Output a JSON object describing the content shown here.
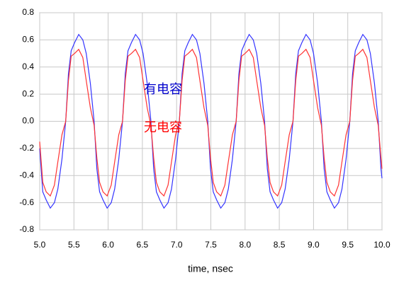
{
  "chart_data": {
    "type": "line",
    "xlabel": "time, nsec",
    "xlim": [
      5,
      10
    ],
    "xticks": [
      {
        "value": 5,
        "label": "5.0"
      },
      5.5,
      {
        "value": 6,
        "label": "6.0"
      },
      6.5,
      {
        "value": 7,
        "label": "7.0"
      },
      7.5,
      {
        "value": 8,
        "label": "8.0"
      },
      8.5,
      {
        "value": 9,
        "label": "9.0"
      },
      9.5,
      {
        "value": 10,
        "label": "10.0"
      }
    ],
    "ylim": [
      -0.8,
      0.8
    ],
    "yticks": [
      0.8,
      0.6,
      0.4,
      0.2,
      {
        "value": 0,
        "label": "0.0"
      },
      -0.2,
      -0.4,
      -0.6,
      -0.8
    ],
    "grid": true,
    "annotations": [
      {
        "text": "有电容",
        "color": "#0000cc"
      },
      {
        "text": "无电容",
        "color": "#ff0000"
      }
    ],
    "x": [
      5.0,
      5.045,
      5.095,
      5.155,
      5.215,
      5.265,
      5.325,
      5.38,
      5.42,
      5.46,
      5.51,
      5.57,
      5.63,
      5.68,
      5.74,
      5.795,
      5.835,
      5.875,
      5.925,
      5.985,
      6.045,
      6.095,
      6.155,
      6.21,
      6.25,
      6.29,
      6.34,
      6.4,
      6.46,
      6.51,
      6.57,
      6.625,
      6.665,
      6.705,
      6.755,
      6.815,
      6.875,
      6.925,
      6.985,
      7.04,
      7.08,
      7.12,
      7.17,
      7.23,
      7.29,
      7.34,
      7.4,
      7.455,
      7.495,
      7.535,
      7.585,
      7.645,
      7.705,
      7.755,
      7.815,
      7.87,
      7.91,
      7.95,
      8.0,
      8.06,
      8.12,
      8.17,
      8.23,
      8.285,
      8.325,
      8.365,
      8.415,
      8.475,
      8.535,
      8.585,
      8.645,
      8.7,
      8.74,
      8.78,
      8.83,
      8.89,
      8.95,
      9.0,
      9.06,
      9.115,
      9.155,
      9.195,
      9.245,
      9.305,
      9.365,
      9.415,
      9.475,
      9.53,
      9.57,
      9.61,
      9.66,
      9.72,
      9.78,
      9.83,
      9.89,
      9.945,
      9.985,
      10.0
    ],
    "series": [
      {
        "name": "有电容",
        "color": "#3333ff",
        "values": [
          -0.2,
          -0.52,
          -0.58,
          -0.64,
          -0.6,
          -0.5,
          -0.28,
          0,
          0.35,
          0.52,
          0.58,
          0.64,
          0.6,
          0.5,
          0.28,
          0,
          -0.35,
          -0.52,
          -0.58,
          -0.64,
          -0.6,
          -0.5,
          -0.28,
          0,
          0.35,
          0.52,
          0.58,
          0.64,
          0.6,
          0.5,
          0.28,
          0,
          -0.35,
          -0.52,
          -0.58,
          -0.64,
          -0.6,
          -0.5,
          -0.28,
          0,
          0.35,
          0.52,
          0.58,
          0.64,
          0.6,
          0.5,
          0.28,
          0,
          -0.35,
          -0.52,
          -0.58,
          -0.64,
          -0.6,
          -0.5,
          -0.28,
          0,
          0.35,
          0.52,
          0.58,
          0.64,
          0.6,
          0.5,
          0.28,
          0,
          -0.35,
          -0.52,
          -0.58,
          -0.64,
          -0.6,
          -0.5,
          -0.28,
          0,
          0.35,
          0.52,
          0.58,
          0.64,
          0.6,
          0.5,
          0.28,
          0,
          -0.35,
          -0.52,
          -0.58,
          -0.64,
          -0.6,
          -0.5,
          -0.28,
          0,
          0.35,
          0.52,
          0.58,
          0.64,
          0.6,
          0.5,
          0.28,
          0,
          -0.35,
          -0.42
        ]
      },
      {
        "name": "无电容",
        "color": "#ff3333",
        "values": [
          -0.15,
          -0.45,
          -0.52,
          -0.55,
          -0.47,
          -0.3,
          -0.1,
          0,
          0.3,
          0.48,
          0.5,
          0.53,
          0.47,
          0.3,
          0.1,
          -0.03,
          -0.27,
          -0.45,
          -0.52,
          -0.55,
          -0.47,
          -0.3,
          -0.1,
          0,
          0.3,
          0.48,
          0.5,
          0.53,
          0.47,
          0.3,
          0.1,
          -0.03,
          -0.27,
          -0.45,
          -0.52,
          -0.55,
          -0.47,
          -0.3,
          -0.1,
          0,
          0.3,
          0.48,
          0.5,
          0.53,
          0.47,
          0.3,
          0.1,
          -0.03,
          -0.27,
          -0.45,
          -0.52,
          -0.55,
          -0.47,
          -0.3,
          -0.1,
          0,
          0.3,
          0.48,
          0.5,
          0.53,
          0.47,
          0.3,
          0.1,
          -0.03,
          -0.27,
          -0.45,
          -0.52,
          -0.55,
          -0.47,
          -0.3,
          -0.1,
          0,
          0.3,
          0.48,
          0.5,
          0.53,
          0.47,
          0.3,
          0.1,
          -0.03,
          -0.27,
          -0.45,
          -0.52,
          -0.55,
          -0.47,
          -0.3,
          -0.1,
          0,
          0.3,
          0.48,
          0.5,
          0.53,
          0.47,
          0.3,
          0.1,
          -0.03,
          -0.27,
          -0.35
        ]
      }
    ]
  }
}
